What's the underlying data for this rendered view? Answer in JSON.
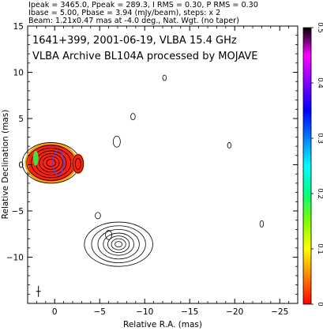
{
  "header": {
    "line1": "Ipeak = 3465.0, Ppeak = 289.3, I RMS = 0.30, P RMS = 0.30",
    "line2": "Ibase = 5.00, Pbase = 3.94 (mJy/beam), steps: x 2",
    "line3": "Beam: 1.21x0.47 mas at -4.0 deg., Nat. Wgt. (no taper)"
  },
  "chart_data": {
    "type": "contour",
    "annotation_line1": "1641+399, 2001-06-19, VLBA 15.4 GHz",
    "annotation_line2": "VLBA Archive BL104A processed by MOJAVE",
    "xlabel": "Relative R.A. (mas)",
    "ylabel": "Relative Declination (mas)",
    "xlim": [
      3,
      -27
    ],
    "ylim": [
      -15,
      15
    ],
    "x_ticks": [
      0,
      -5,
      -10,
      -15,
      -20,
      -25
    ],
    "x_tick_labels": [
      "0",
      "−5",
      "−10",
      "−15",
      "−20",
      "−25"
    ],
    "y_ticks": [
      15,
      10,
      5,
      0,
      -5,
      -10
    ],
    "y_tick_labels": [
      "15",
      "10",
      "5",
      "0",
      "−5",
      "−10"
    ],
    "colorbar": {
      "ticks": [
        0,
        0.1,
        0.2,
        0.3,
        0.4,
        0.5
      ],
      "tick_labels": [
        "0",
        "0.1",
        "0.2",
        "0.3",
        "0.4",
        "0.5"
      ],
      "colormap": [
        "#ff0000",
        "#ff8000",
        "#ffff00",
        "#80ff00",
        "#00ff80",
        "#00ffff",
        "#0080ff",
        "#0000ff",
        "#8000ff",
        "#ff00ff",
        "#000000"
      ]
    },
    "components": [
      {
        "name": "core",
        "ra": 0.4,
        "dec": 0.2,
        "rings": [
          [
            0.5,
            0.4
          ],
          [
            0.9,
            0.7
          ],
          [
            1.3,
            1.0
          ],
          [
            1.7,
            1.3
          ],
          [
            2.2,
            1.6
          ],
          [
            2.7,
            1.9
          ],
          [
            3.2,
            2.2
          ]
        ],
        "fill": [
          2.6,
          2.0
        ]
      },
      {
        "name": "knot-east",
        "ra": -2.6,
        "dec": 0.1,
        "rings": [
          [
            0.3,
            0.6
          ],
          [
            0.6,
            1.0
          ]
        ],
        "fill": [
          0.6,
          1.0
        ]
      },
      {
        "name": "knot-west",
        "ra": 2.1,
        "dec": 0.7,
        "rings": [
          [
            0.2,
            0.5
          ]
        ],
        "fill": [
          0.25,
          0.7
        ]
      },
      {
        "name": "blob-sw",
        "ra": -7.1,
        "dec": -8.6,
        "rings": [
          [
            0.4,
            0.3
          ],
          [
            0.8,
            0.6
          ],
          [
            1.2,
            0.9
          ],
          [
            1.7,
            1.2
          ],
          [
            2.3,
            1.6
          ],
          [
            3.0,
            2.0
          ],
          [
            3.8,
            2.4
          ]
        ],
        "fill": [
          0,
          0
        ]
      },
      {
        "name": "spot-1",
        "ra": -6.9,
        "dec": 2.5,
        "rings": [
          [
            0.4,
            0.6
          ]
        ],
        "fill": [
          0,
          0
        ]
      },
      {
        "name": "spot-2",
        "ra": -8.7,
        "dec": 5.2,
        "rings": [
          [
            0.25,
            0.35
          ]
        ],
        "fill": [
          0,
          0
        ]
      },
      {
        "name": "spot-3",
        "ra": -12.2,
        "dec": 9.4,
        "rings": [
          [
            0.2,
            0.3
          ]
        ],
        "fill": [
          0,
          0
        ]
      },
      {
        "name": "spot-4",
        "ra": -19.4,
        "dec": 2.1,
        "rings": [
          [
            0.2,
            0.3
          ]
        ],
        "fill": [
          0,
          0
        ]
      },
      {
        "name": "spot-5",
        "ra": -23.0,
        "dec": -6.4,
        "rings": [
          [
            0.2,
            0.35
          ]
        ],
        "fill": [
          0,
          0
        ]
      },
      {
        "name": "spot-6",
        "ra": -4.8,
        "dec": -5.5,
        "rings": [
          [
            0.3,
            0.35
          ]
        ],
        "fill": [
          0,
          0
        ]
      },
      {
        "name": "spot-7",
        "ra": -6.0,
        "dec": -7.6,
        "rings": [
          [
            0.35,
            0.5
          ]
        ],
        "fill": [
          0,
          0
        ]
      }
    ],
    "beam_marker": {
      "ra": 1.8,
      "dec": -13.7
    }
  }
}
